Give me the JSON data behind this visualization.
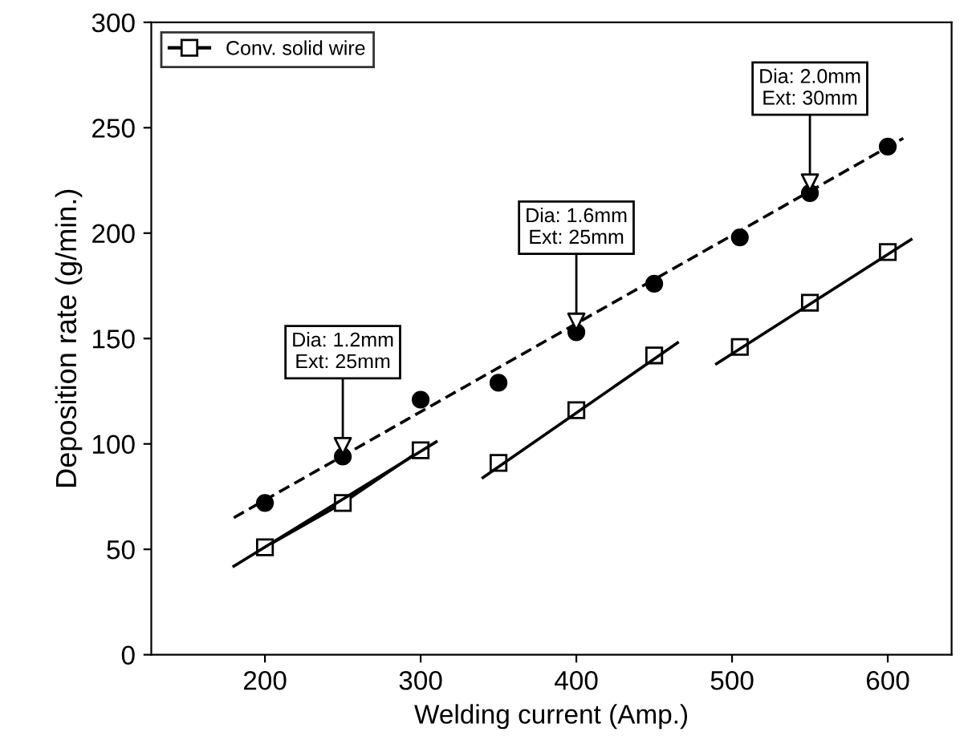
{
  "chart_data": {
    "type": "scatter",
    "xlabel": "Welding current (Amp.)",
    "ylabel": "Deposition rate (g/min.)",
    "xlim": [
      127,
      641
    ],
    "ylim": [
      0,
      300
    ],
    "xticks": [
      200,
      300,
      400,
      500,
      600
    ],
    "yticks": [
      0,
      50,
      100,
      150,
      200,
      250,
      300
    ],
    "grid": false,
    "legend": "top left",
    "series": [
      {
        "color": "#000000",
        "marker": "circle",
        "x": [
          200,
          250,
          300,
          350,
          400,
          450,
          505,
          550,
          600
        ],
        "values": [
          72,
          94,
          121,
          129,
          153,
          176,
          198,
          219,
          241
        ]
      },
      {
        "type": "line",
        "color": "#000000",
        "line_style": "dashed",
        "marker": "none",
        "x": [
          180,
          610
        ],
        "values": [
          65,
          245
        ]
      },
      {
        "type": "line",
        "name": "Conv. solid wire",
        "color": "#000000",
        "line_style": "solid",
        "marker": "square",
        "x": [
          200,
          250,
          300
        ],
        "values": [
          51,
          72,
          97
        ]
      },
      {
        "type": "line",
        "color": "#000000",
        "line_style": "solid",
        "marker": "none",
        "x": [
          180,
          310
        ],
        "values": [
          42,
          101
        ]
      },
      {
        "color": "#000000",
        "marker": "square",
        "x": [
          350,
          400,
          450,
          505,
          550,
          600
        ],
        "values": [
          91,
          116,
          142,
          146,
          167,
          191
        ]
      },
      {
        "type": "line",
        "color": "#000000",
        "line_style": "solid",
        "marker": "none",
        "x": [
          340,
          465
        ],
        "values": [
          84,
          148
        ]
      },
      {
        "type": "line",
        "color": "#000000",
        "line_style": "solid",
        "marker": "none",
        "x": [
          490,
          615
        ],
        "values": [
          138,
          197
        ]
      }
    ],
    "annotations": [
      {
        "text": "Dia: 1.2mm\nExt: 25mm",
        "x": 250,
        "y": 94
      },
      {
        "text": "Dia: 1.6mm\nExt: 25mm",
        "x": 400,
        "y": 153
      },
      {
        "text": "Dia: 2.0mm\nExt: 30mm",
        "x": 550,
        "y": 219
      }
    ]
  }
}
